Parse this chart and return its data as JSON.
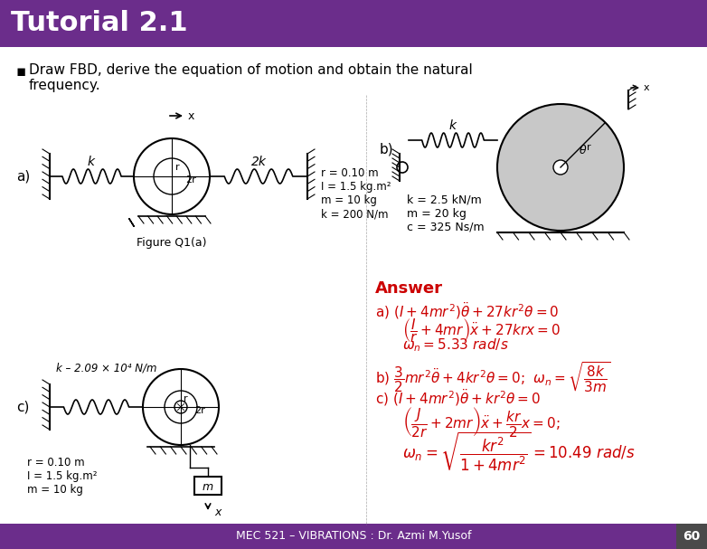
{
  "title": "Tutorial 2.1",
  "title_bg": "#6B2D8B",
  "title_color": "white",
  "title_fontsize": 22,
  "bullet_text": "Draw FBD, derive the equation of motion and obtain the natural\nfrequency.",
  "footer_text": "MEC 521 – VIBRATIONS : Dr. Azmi M.Yusof",
  "footer_page": "60",
  "footer_bg": "#6B2D8B",
  "footer_color": "white",
  "bg_color": "white",
  "red_color": "#CC0000",
  "answer_title": "Answer",
  "answer_a1": "a) $(I + 4mr^2)\\ddot{\\theta} + 27kr^2\\theta = 0$",
  "answer_a2": "$\\left(\\frac{I}{r} + 4mr\\right)\\ddot{x} + 27krx = 0$",
  "answer_a3": "$\\omega_n = 5.33\\ rad/s$",
  "answer_b1": "b) $\\frac{3}{2}mr^2\\ddot{\\theta} + 4kr^2\\theta = 0$;  $\\omega_n = \\sqrt{\\dfrac{8k}{3m}}$",
  "answer_c1": "c) $(I + 4mr^2)\\ddot{\\theta} + kr^2\\theta = 0$",
  "answer_c2": "$\\left(\\frac{J}{2r} + 2mr\\right)\\ddot{x} + \\frac{kr}{2}x = 0$;",
  "answer_c3": "$\\omega_n = \\sqrt{\\dfrac{kr^2}{1+4mr^2}} = 10.49\\ rad/s$",
  "fig_a_label": "Figure Q1(a)",
  "fig_a_params": "r = 0.10 m\nI = 1.5 kg.m²\nm = 10 kg\nk = 200 N/m",
  "fig_c_params": "r = 0.10 m\nI = 1.5 kg.m²\nm = 10 kg",
  "fig_b_params": "k = 2.5 kN/m\nm = 20 kg\nc = 325 Ns/m",
  "spring_k_label_a": "k",
  "spring_2k_label_a": "2k",
  "spring_k_label_b": "k",
  "spring_k_label_c": "k – 2.09 × 10⁴ N/m"
}
